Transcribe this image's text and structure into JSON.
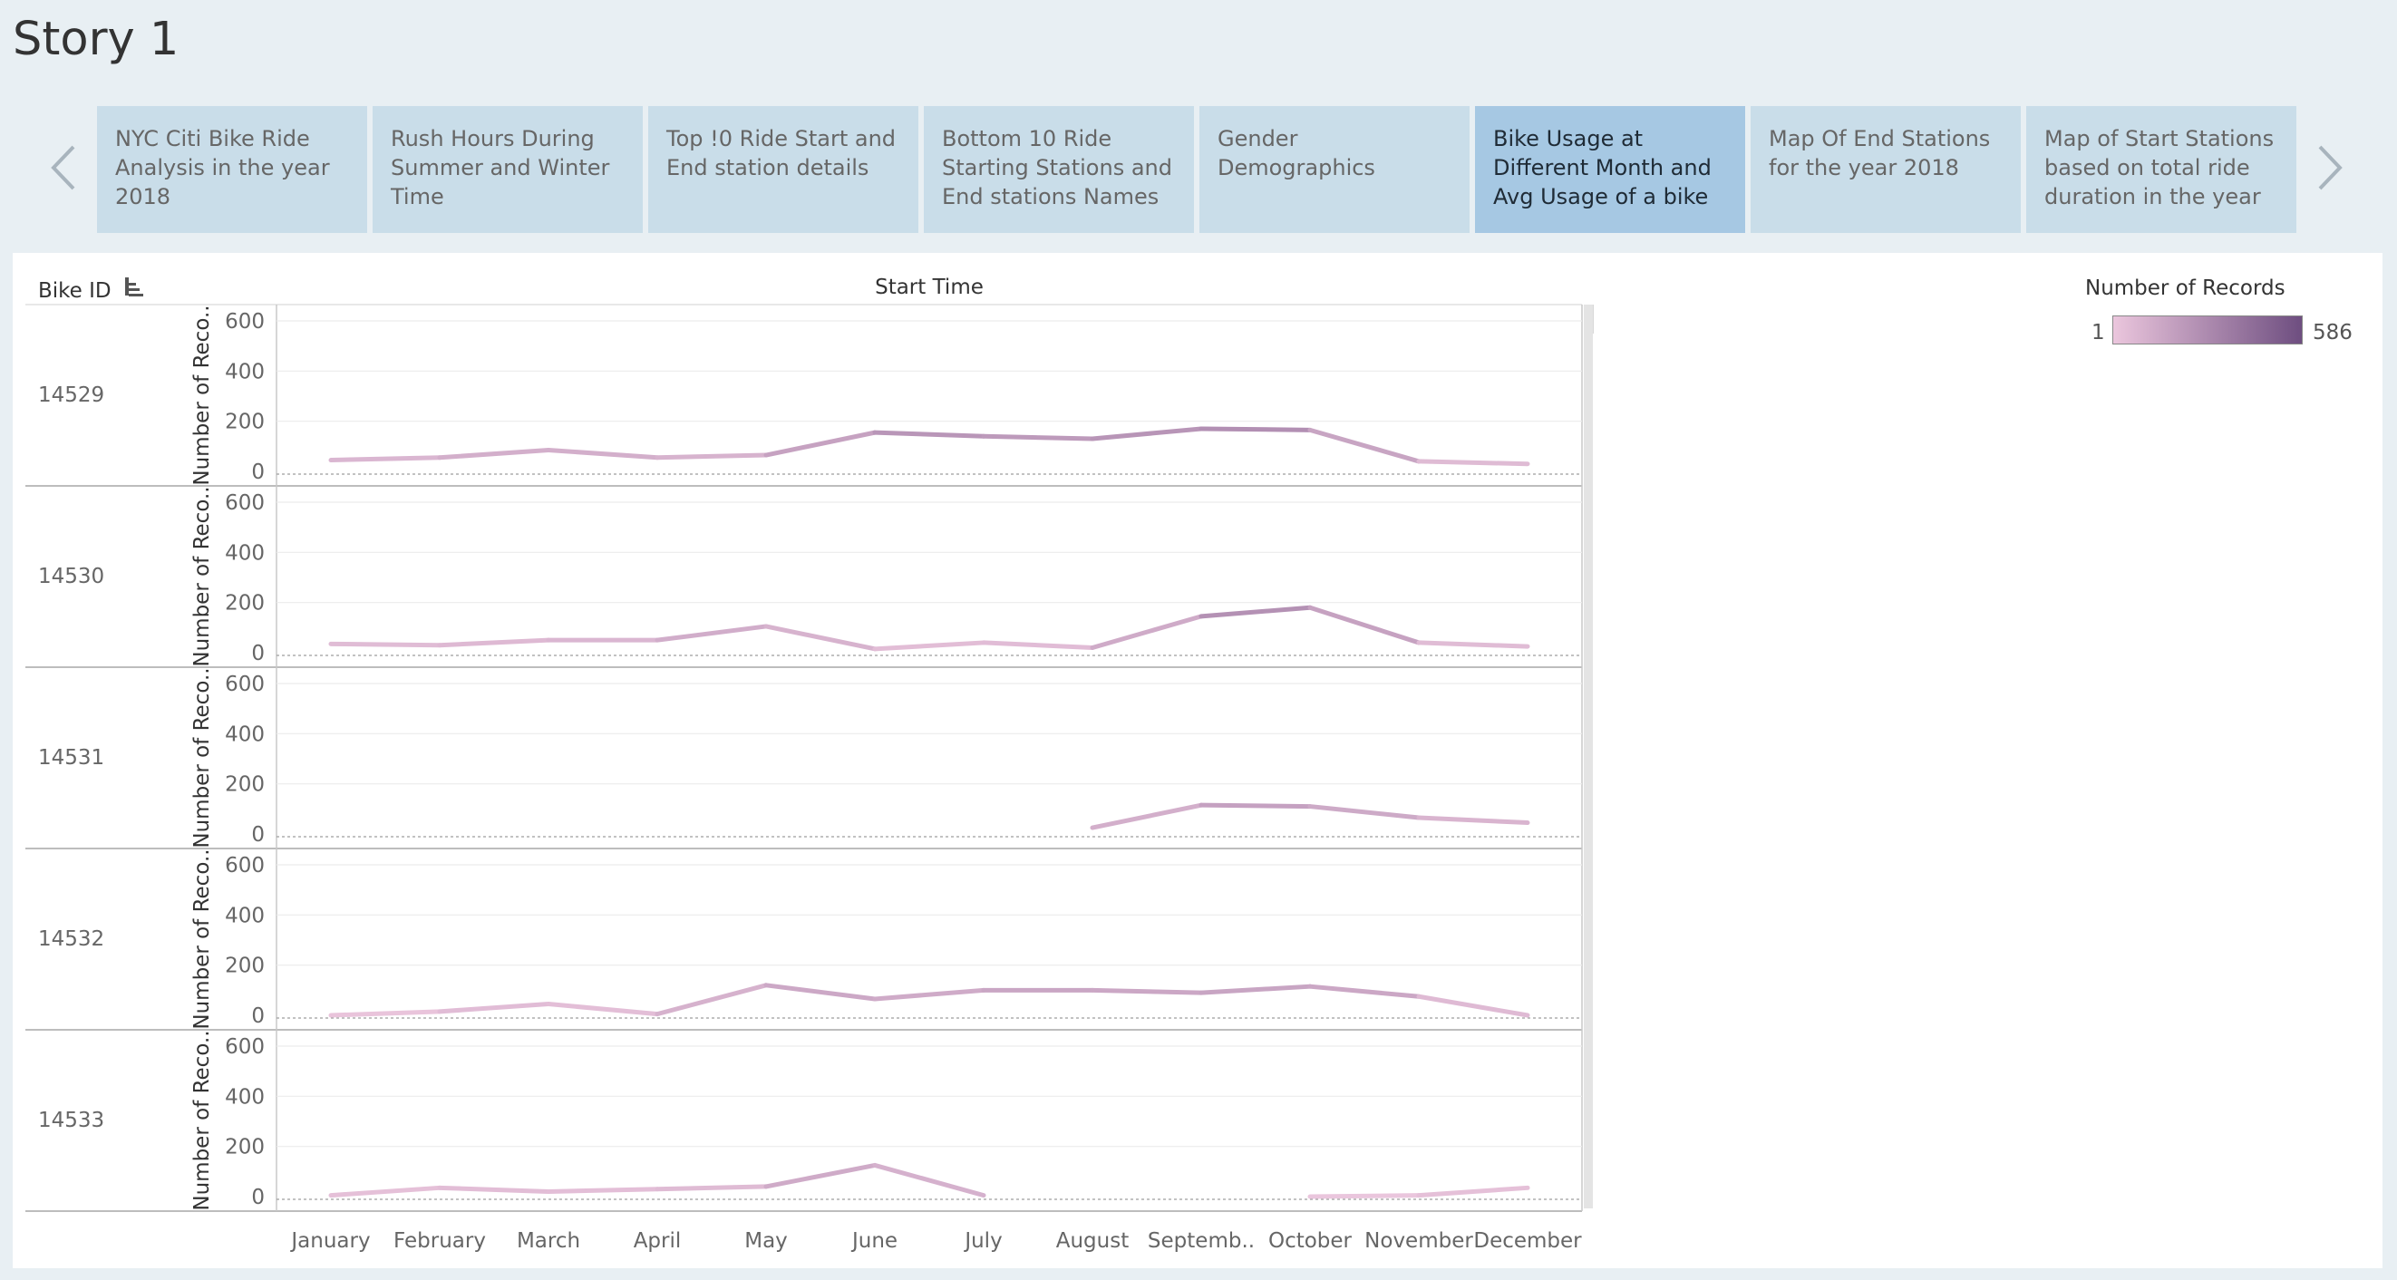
{
  "story": {
    "title": "Story 1"
  },
  "tabs": [
    {
      "label": "NYC Citi Bike Ride Analysis in the year 2018",
      "active": false
    },
    {
      "label": "Rush Hours During Summer and Winter Time",
      "active": false
    },
    {
      "label": "Top !0 Ride Start and End station details",
      "active": false
    },
    {
      "label": "Bottom 10 Ride Starting Stations and End stations Names",
      "active": false
    },
    {
      "label": "Gender Demographics",
      "active": false
    },
    {
      "label": "Bike Usage at Different Month and Avg Usage of a bike",
      "active": true
    },
    {
      "label": "Map Of End Stations for the year 2018",
      "active": false
    },
    {
      "label": "Map of Start Stations based on total ride duration in the year",
      "active": false
    }
  ],
  "icons": {
    "prev": "chevron-left-icon",
    "next": "chevron-right-icon",
    "sort": "sort-icon"
  },
  "colors": {
    "background": "#e8eff3",
    "tab": "#c9dde9",
    "tab_active": "#a6c8e3",
    "ramp_low": "#ebc6dd",
    "ramp_high": "#6e4e80"
  },
  "legend": {
    "title": "Number of Records",
    "min": "1",
    "max": "586"
  },
  "chart_data": {
    "type": "line",
    "title": "",
    "xlabel": "Start Time",
    "row_header": "Bike ID",
    "ylabel": "Number of Reco..",
    "categories": [
      "January",
      "February",
      "March",
      "April",
      "May",
      "June",
      "July",
      "August",
      "Septemb..",
      "October",
      "November",
      "December"
    ],
    "ylim": [
      0,
      600
    ],
    "yticks": [
      0,
      200,
      400,
      600
    ],
    "grid": true,
    "legend_position": "top-right",
    "series": [
      {
        "name": "14529",
        "values": [
          45,
          55,
          85,
          55,
          65,
          155,
          140,
          130,
          170,
          165,
          40,
          30
        ]
      },
      {
        "name": "14530",
        "values": [
          35,
          30,
          50,
          50,
          105,
          15,
          40,
          20,
          145,
          180,
          40,
          25
        ]
      },
      {
        "name": "14531",
        "values": [
          null,
          null,
          null,
          null,
          null,
          null,
          null,
          25,
          115,
          110,
          65,
          45
        ]
      },
      {
        "name": "14532",
        "values": [
          0,
          15,
          45,
          5,
          120,
          65,
          100,
          100,
          90,
          115,
          75,
          0
        ]
      },
      {
        "name": "14533",
        "values": [
          5,
          35,
          20,
          30,
          40,
          125,
          5,
          null,
          null,
          0,
          5,
          35
        ]
      }
    ]
  }
}
